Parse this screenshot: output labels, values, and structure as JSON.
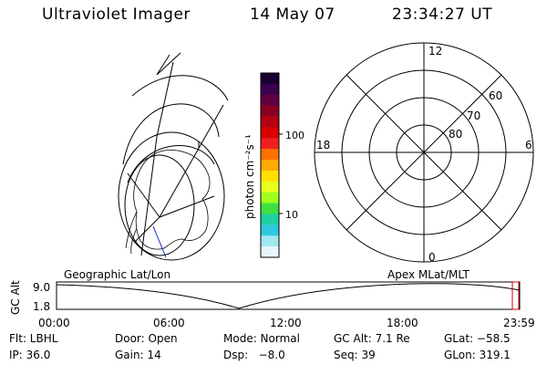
{
  "header": {
    "title": "Ultraviolet Imager",
    "date": "14 May 07",
    "time": "23:34:27 UT"
  },
  "colorbar": {
    "unit_label": "photon cm⁻²s⁻¹",
    "ticks": [
      "100",
      "10"
    ],
    "scale": "log",
    "colors": [
      "#1a0030",
      "#3a0050",
      "#600040",
      "#8a0020",
      "#b40010",
      "#d80000",
      "#f02020",
      "#ff7000",
      "#ffa800",
      "#ffe000",
      "#e8ff20",
      "#a0ff20",
      "#40e040",
      "#20d0a0",
      "#30c8e0",
      "#a0e8f0",
      "#e6f6fa"
    ]
  },
  "polar": {
    "mlt_labels": {
      "top": "12",
      "bottom": "0",
      "left": "18",
      "right": "6"
    },
    "lat_labels": [
      "60",
      "70",
      "80"
    ]
  },
  "timeline": {
    "y_axis_label": "GC Alt",
    "y_ticks": [
      "9.0",
      "1.8"
    ],
    "left_caption": "Geographic Lat/Lon",
    "right_caption": "Apex  MLat/MLT",
    "x_ticks": [
      "00:00",
      "06:00",
      "12:00",
      "18:00",
      "23:59"
    ],
    "marker_color": "#d00000"
  },
  "status": {
    "row1": [
      {
        "key": "flt",
        "text": "Flt: LBHL"
      },
      {
        "key": "door",
        "text": "Door: Open"
      },
      {
        "key": "mode",
        "text": "Mode: Normal"
      },
      {
        "key": "gcalt",
        "text": "GC Alt: 7.1 Re"
      },
      {
        "key": "glat",
        "text": "GLat: −58.5"
      }
    ],
    "row2": [
      {
        "key": "ip",
        "text": "IP: 36.0"
      },
      {
        "key": "gain",
        "text": "Gain: 14"
      },
      {
        "key": "dsp",
        "text": "Dsp:   −8.0"
      },
      {
        "key": "seq",
        "text": "Seq: 39"
      },
      {
        "key": "glon",
        "text": "GLon: 319.1"
      }
    ]
  }
}
